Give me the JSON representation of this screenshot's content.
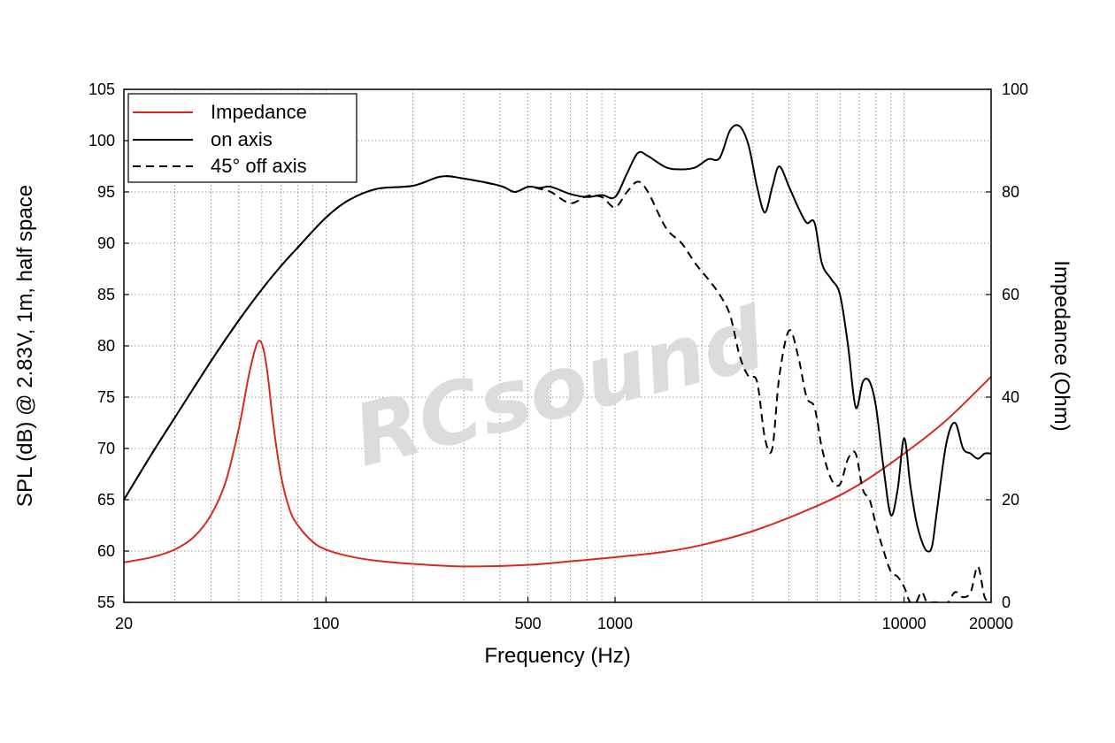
{
  "chart_data": {
    "type": "line",
    "xlabel": "Frequency (Hz)",
    "ylabel": "SPL (dB) @ 2.83V, 1m, half space",
    "y2label": "Impedance (Ohm)",
    "xscale": "log",
    "xlim": [
      20,
      20000
    ],
    "ylim": [
      55,
      105
    ],
    "y2lim": [
      0,
      100
    ],
    "grid": true,
    "legend_position": "top-left",
    "watermark": "RCsound",
    "x_tick_labels": [
      "20",
      "100",
      "500",
      "1000",
      "10000",
      "20000"
    ],
    "x_tick_values": [
      20,
      100,
      500,
      1000,
      10000,
      20000
    ],
    "y_tick_labels": [
      "55",
      "60",
      "65",
      "70",
      "75",
      "80",
      "85",
      "90",
      "95",
      "100",
      "105"
    ],
    "y2_tick_labels": [
      "0",
      "20",
      "40",
      "60",
      "80",
      "100"
    ],
    "series": [
      {
        "name": "Impedance",
        "axis": "right",
        "color": "#d62a1e",
        "style": "solid",
        "x": [
          20,
          25,
          30,
          35,
          40,
          45,
          50,
          54,
          57,
          59,
          61,
          63,
          66,
          70,
          75,
          80,
          90,
          100,
          120,
          150,
          200,
          300,
          500,
          700,
          1000,
          1500,
          2000,
          3000,
          5000,
          7000,
          10000,
          14000,
          20000
        ],
        "y": [
          7.8,
          8.8,
          10.3,
          12.8,
          17.0,
          23.5,
          34.0,
          44.0,
          49.5,
          51.0,
          49.0,
          44.0,
          34.0,
          24.5,
          18.0,
          15.0,
          11.8,
          10.3,
          9.0,
          8.1,
          7.5,
          7.0,
          7.3,
          8.0,
          8.8,
          9.9,
          11.2,
          13.9,
          18.8,
          23.0,
          29.0,
          35.5,
          44.0
        ]
      },
      {
        "name": "on axis",
        "axis": "left",
        "color": "#000000",
        "style": "solid",
        "x": [
          20,
          25,
          30,
          40,
          50,
          60,
          70,
          80,
          100,
          120,
          150,
          200,
          250,
          300,
          400,
          450,
          500,
          550,
          600,
          700,
          800,
          900,
          1000,
          1100,
          1200,
          1300,
          1500,
          1700,
          1900,
          2100,
          2300,
          2500,
          2700,
          2900,
          3100,
          3300,
          3500,
          3700,
          4000,
          4300,
          4600,
          4900,
          5200,
          5600,
          6000,
          6400,
          6800,
          7200,
          7600,
          8000,
          8500,
          9000,
          9500,
          10000,
          10500,
          11000,
          11500,
          12000,
          12500,
          13000,
          14000,
          15000,
          16000,
          17000,
          18000,
          19000,
          20000
        ],
        "y": [
          65.0,
          69.5,
          73.0,
          78.5,
          82.5,
          85.5,
          87.8,
          89.6,
          92.5,
          94.2,
          95.3,
          95.6,
          96.5,
          96.3,
          95.6,
          95.0,
          95.5,
          95.4,
          95.5,
          94.8,
          94.5,
          94.7,
          94.5,
          96.8,
          98.8,
          98.5,
          97.4,
          97.2,
          97.4,
          98.2,
          98.3,
          101.0,
          101.4,
          99.5,
          95.5,
          93.0,
          95.5,
          97.5,
          95.5,
          93.5,
          92.0,
          92.0,
          88.0,
          86.5,
          85.0,
          80.0,
          74.0,
          76.5,
          76.5,
          74.0,
          68.0,
          63.5,
          66.0,
          71.0,
          66.5,
          63.0,
          61.0,
          60.0,
          60.5,
          64.0,
          70.5,
          72.5,
          70.0,
          69.5,
          69.0,
          69.5,
          69.5
        ]
      },
      {
        "name": "45° off axis",
        "axis": "left",
        "color": "#000000",
        "style": "dashed",
        "x": [
          20,
          25,
          30,
          40,
          50,
          60,
          70,
          80,
          100,
          120,
          150,
          200,
          250,
          300,
          400,
          450,
          500,
          550,
          600,
          700,
          800,
          900,
          1000,
          1100,
          1200,
          1300,
          1500,
          1700,
          1900,
          2100,
          2300,
          2500,
          2700,
          2900,
          3100,
          3300,
          3500,
          3700,
          4000,
          4300,
          4600,
          4900,
          5200,
          5600,
          6000,
          6400,
          6800,
          7200,
          7600,
          8000,
          8500,
          9000,
          9500,
          10000,
          10500,
          11000,
          11500,
          12000,
          12500,
          13000,
          14000,
          15000,
          16000,
          17000,
          18000,
          19000,
          20000
        ],
        "y": [
          65.0,
          69.5,
          73.0,
          78.5,
          82.5,
          85.5,
          87.8,
          89.6,
          92.5,
          94.2,
          95.3,
          95.6,
          96.5,
          96.3,
          95.6,
          95.0,
          95.5,
          95.3,
          95.0,
          93.9,
          94.6,
          94.5,
          93.5,
          95.0,
          96.0,
          95.0,
          91.5,
          90.0,
          88.0,
          86.5,
          85.0,
          83.0,
          79.0,
          77.0,
          76.5,
          71.0,
          70.0,
          77.0,
          81.5,
          79.0,
          75.0,
          74.0,
          70.0,
          67.0,
          66.5,
          69.0,
          69.5,
          66.0,
          65.0,
          62.5,
          60.0,
          58.0,
          57.5,
          56.5,
          55.0,
          55.0,
          56.0,
          55.0,
          55.0,
          55.0,
          54.8,
          56.0,
          55.5,
          56.0,
          58.5,
          55.5,
          55.0
        ]
      }
    ]
  }
}
